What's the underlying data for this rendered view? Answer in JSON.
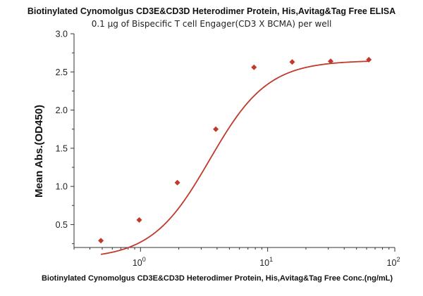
{
  "chart_data": {
    "type": "scatter",
    "title": "Biotinylated Cynomolgus CD3E&CD3D Heterodimer Protein, His,Avitag&Tag Free ELISA",
    "subtitle": "0.1 μg of Bispecific T cell Engager(CD3 X BCMA) per well",
    "xlabel": "Biotinylated Cynomolgus CD3E&CD3D Heterodimer Protein, His,Avitag&Tag Free Conc.(ng/mL)",
    "ylabel": "Mean Abs.(OD450)",
    "xscale": "log",
    "xlim": [
      0.3,
      100
    ],
    "ylim": [
      0.2,
      3.0
    ],
    "x_ticks": [
      {
        "value": 1,
        "base": "10",
        "exp": "0"
      },
      {
        "value": 10,
        "base": "10",
        "exp": "1"
      },
      {
        "value": 100,
        "base": "10",
        "exp": "2"
      }
    ],
    "y_ticks": [
      {
        "value": 0.5,
        "label": "0.5"
      },
      {
        "value": 1.0,
        "label": "1.0"
      },
      {
        "value": 1.5,
        "label": "1.5"
      },
      {
        "value": 2.0,
        "label": "2.0"
      },
      {
        "value": 2.5,
        "label": "2.5"
      },
      {
        "value": 3.0,
        "label": "3.0"
      }
    ],
    "series": [
      {
        "name": "ELISA",
        "color": "#c0392b",
        "x": [
          0.488,
          0.977,
          1.95,
          3.91,
          7.81,
          15.6,
          31.3,
          62.5
        ],
        "y": [
          0.29,
          0.56,
          1.05,
          1.75,
          2.56,
          2.63,
          2.64,
          2.66
        ]
      }
    ],
    "fit": {
      "model": "4PL",
      "bottom": 0.05,
      "top": 2.65,
      "ec50": 3.5,
      "hill": 1.9,
      "color": "#c0392b"
    }
  }
}
